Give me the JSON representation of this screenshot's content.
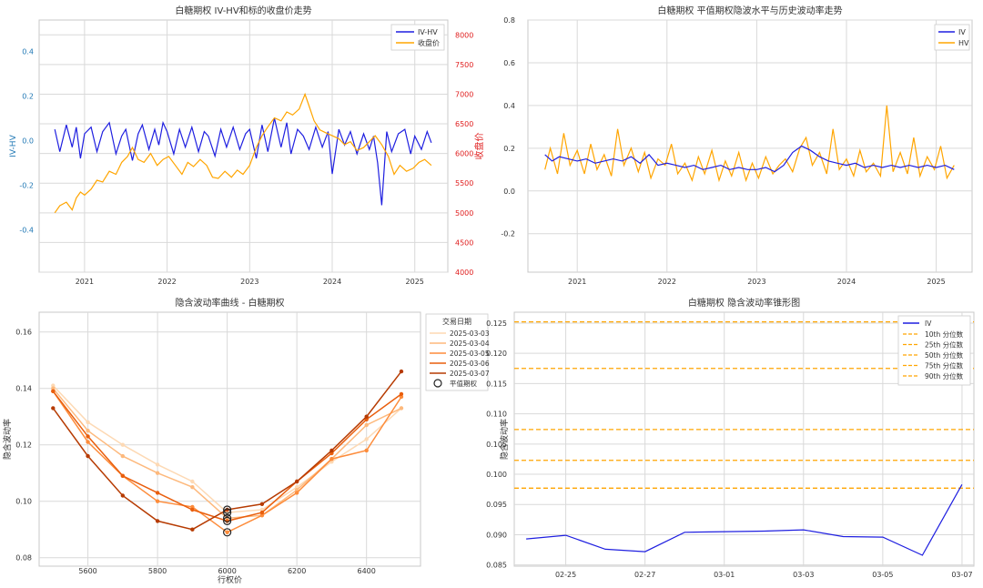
{
  "colors": {
    "blue": "#1f1fe0",
    "orange": "#ffa500",
    "red": "#e02020",
    "tick_blue": "#1f77b4"
  },
  "chart_data": [
    {
      "type": "line",
      "title": "白糖期权 IV-HV和标的收盘价走势",
      "ylabel": "IV-HV",
      "y2label": "收盘价",
      "xlim": [
        2020.45,
        2025.4
      ],
      "ylim": [
        -0.59,
        0.54
      ],
      "y2lim": [
        4000,
        8250
      ],
      "x_ticks": [
        2021,
        2022,
        2023,
        2024,
        2025
      ],
      "x_tick_labels": [
        "2021",
        "2022",
        "2023",
        "2024",
        "2025"
      ],
      "y_ticks": [
        -0.4,
        -0.2,
        0.0,
        0.2,
        0.4
      ],
      "y_tick_labels": [
        "-0.4",
        "-0.2",
        "0.0",
        "0.2",
        "0.4"
      ],
      "y2_ticks": [
        4000,
        4500,
        5000,
        5500,
        6000,
        6500,
        7000,
        7500,
        8000
      ],
      "y2_tick_labels": [
        "4000",
        "4500",
        "5000",
        "5500",
        "6000",
        "6500",
        "7000",
        "7500",
        "8000"
      ],
      "legend_position": "top-right",
      "series": [
        {
          "name": "IV-HV",
          "axis": "left",
          "color": "#1f1fe0",
          "x": [
            2020.64,
            2020.7,
            2020.78,
            2020.85,
            2020.9,
            2020.95,
            2021.0,
            2021.08,
            2021.15,
            2021.22,
            2021.3,
            2021.38,
            2021.45,
            2021.5,
            2021.58,
            2021.65,
            2021.7,
            2021.78,
            2021.85,
            2021.9,
            2021.95,
            2022.0,
            2022.08,
            2022.15,
            2022.22,
            2022.3,
            2022.38,
            2022.45,
            2022.5,
            2022.58,
            2022.65,
            2022.72,
            2022.8,
            2022.88,
            2022.95,
            2023.0,
            2023.08,
            2023.15,
            2023.22,
            2023.3,
            2023.38,
            2023.45,
            2023.5,
            2023.58,
            2023.65,
            2023.72,
            2023.8,
            2023.88,
            2023.95,
            2024.0,
            2024.08,
            2024.15,
            2024.22,
            2024.3,
            2024.38,
            2024.45,
            2024.5,
            2024.55,
            2024.6,
            2024.66,
            2024.72,
            2024.8,
            2024.88,
            2024.95,
            2025.0,
            2025.08,
            2025.15,
            2025.2
          ],
          "y": [
            0.05,
            -0.05,
            0.07,
            -0.03,
            0.06,
            -0.08,
            0.03,
            0.06,
            -0.05,
            0.04,
            0.08,
            -0.06,
            0.02,
            0.05,
            -0.09,
            0.03,
            0.07,
            -0.04,
            0.05,
            -0.02,
            0.08,
            0.04,
            -0.06,
            0.05,
            -0.03,
            0.06,
            -0.05,
            0.04,
            0.02,
            -0.07,
            0.05,
            -0.03,
            0.06,
            -0.04,
            0.03,
            0.05,
            -0.08,
            0.07,
            -0.05,
            0.1,
            -0.03,
            0.08,
            -0.06,
            0.05,
            0.02,
            -0.04,
            0.06,
            -0.03,
            0.04,
            -0.15,
            0.05,
            -0.02,
            0.04,
            -0.06,
            0.03,
            -0.04,
            0.02,
            -0.1,
            -0.29,
            0.04,
            -0.05,
            0.03,
            0.05,
            -0.06,
            0.02,
            -0.04,
            0.04,
            -0.01
          ]
        },
        {
          "name": "收盘价",
          "axis": "right",
          "color": "#ffa500",
          "x": [
            2020.64,
            2020.7,
            2020.78,
            2020.85,
            2020.9,
            2020.95,
            2021.0,
            2021.08,
            2021.15,
            2021.22,
            2021.3,
            2021.38,
            2021.45,
            2021.52,
            2021.58,
            2021.65,
            2021.72,
            2021.8,
            2021.88,
            2021.95,
            2022.02,
            2022.1,
            2022.18,
            2022.25,
            2022.32,
            2022.4,
            2022.48,
            2022.55,
            2022.62,
            2022.7,
            2022.78,
            2022.85,
            2022.92,
            2023.0,
            2023.08,
            2023.15,
            2023.22,
            2023.3,
            2023.38,
            2023.45,
            2023.52,
            2023.6,
            2023.67,
            2023.72,
            2023.78,
            2023.85,
            2023.92,
            2024.0,
            2024.08,
            2024.15,
            2024.22,
            2024.3,
            2024.38,
            2024.45,
            2024.52,
            2024.6,
            2024.68,
            2024.75,
            2024.82,
            2024.9,
            2024.98,
            2025.05,
            2025.12,
            2025.2
          ],
          "y": [
            5000,
            5120,
            5180,
            5050,
            5250,
            5350,
            5300,
            5400,
            5550,
            5520,
            5700,
            5650,
            5850,
            5950,
            6100,
            5900,
            5850,
            6000,
            5800,
            5900,
            5950,
            5800,
            5650,
            5850,
            5780,
            5900,
            5800,
            5600,
            5580,
            5700,
            5600,
            5720,
            5650,
            5800,
            6100,
            6300,
            6450,
            6600,
            6550,
            6700,
            6650,
            6750,
            7000,
            6800,
            6550,
            6400,
            6350,
            6300,
            6250,
            6150,
            6200,
            6050,
            6100,
            6200,
            6300,
            6150,
            5950,
            5650,
            5800,
            5700,
            5750,
            5850,
            5900,
            5800
          ]
        }
      ]
    },
    {
      "type": "line",
      "title": "白糖期权 平值期权隐波水平与历史波动率走势",
      "xlim": [
        2020.45,
        2025.4
      ],
      "ylim": [
        -0.38,
        0.8
      ],
      "x_ticks": [
        2021,
        2022,
        2023,
        2024,
        2025
      ],
      "x_tick_labels": [
        "2021",
        "2022",
        "2023",
        "2024",
        "2025"
      ],
      "y_ticks": [
        -0.2,
        0.0,
        0.2,
        0.4,
        0.6,
        0.8
      ],
      "y_tick_labels": [
        "-0.2",
        "0.0",
        "0.2",
        "0.4",
        "0.6",
        "0.8"
      ],
      "legend_position": "top-right",
      "series": [
        {
          "name": "IV",
          "color": "#1f1fe0",
          "x": [
            2020.64,
            2020.72,
            2020.8,
            2020.9,
            2021.0,
            2021.1,
            2021.2,
            2021.3,
            2021.4,
            2021.5,
            2021.6,
            2021.7,
            2021.8,
            2021.9,
            2022.0,
            2022.1,
            2022.2,
            2022.3,
            2022.4,
            2022.5,
            2022.6,
            2022.7,
            2022.8,
            2022.9,
            2023.0,
            2023.1,
            2023.2,
            2023.3,
            2023.4,
            2023.5,
            2023.6,
            2023.7,
            2023.8,
            2023.9,
            2024.0,
            2024.1,
            2024.2,
            2024.3,
            2024.4,
            2024.5,
            2024.6,
            2024.7,
            2024.8,
            2024.9,
            2025.0,
            2025.1,
            2025.2
          ],
          "y": [
            0.17,
            0.14,
            0.16,
            0.15,
            0.14,
            0.15,
            0.13,
            0.14,
            0.15,
            0.14,
            0.16,
            0.13,
            0.17,
            0.12,
            0.13,
            0.12,
            0.11,
            0.12,
            0.1,
            0.11,
            0.12,
            0.1,
            0.11,
            0.1,
            0.1,
            0.11,
            0.09,
            0.12,
            0.18,
            0.21,
            0.19,
            0.16,
            0.14,
            0.13,
            0.12,
            0.13,
            0.11,
            0.12,
            0.11,
            0.12,
            0.11,
            0.12,
            0.11,
            0.12,
            0.11,
            0.12,
            0.1
          ]
        },
        {
          "name": "HV",
          "color": "#ffa500",
          "x": [
            2020.64,
            2020.7,
            2020.78,
            2020.85,
            2020.92,
            2021.0,
            2021.08,
            2021.15,
            2021.22,
            2021.3,
            2021.38,
            2021.45,
            2021.52,
            2021.6,
            2021.68,
            2021.75,
            2021.82,
            2021.9,
            2021.98,
            2022.05,
            2022.12,
            2022.2,
            2022.28,
            2022.35,
            2022.42,
            2022.5,
            2022.58,
            2022.65,
            2022.72,
            2022.8,
            2022.88,
            2022.95,
            2023.02,
            2023.1,
            2023.18,
            2023.25,
            2023.32,
            2023.4,
            2023.48,
            2023.55,
            2023.62,
            2023.7,
            2023.78,
            2023.85,
            2023.92,
            2024.0,
            2024.08,
            2024.15,
            2024.22,
            2024.3,
            2024.38,
            2024.45,
            2024.52,
            2024.6,
            2024.68,
            2024.75,
            2024.82,
            2024.9,
            2024.98,
            2025.05,
            2025.12,
            2025.2
          ],
          "y": [
            0.1,
            0.2,
            0.08,
            0.27,
            0.12,
            0.19,
            0.08,
            0.22,
            0.1,
            0.17,
            0.07,
            0.29,
            0.12,
            0.2,
            0.09,
            0.18,
            0.06,
            0.15,
            0.12,
            0.22,
            0.08,
            0.13,
            0.05,
            0.16,
            0.08,
            0.19,
            0.05,
            0.14,
            0.07,
            0.18,
            0.05,
            0.13,
            0.06,
            0.16,
            0.08,
            0.12,
            0.15,
            0.09,
            0.2,
            0.25,
            0.12,
            0.18,
            0.08,
            0.29,
            0.1,
            0.15,
            0.07,
            0.19,
            0.09,
            0.13,
            0.07,
            0.4,
            0.09,
            0.18,
            0.08,
            0.25,
            0.07,
            0.16,
            0.1,
            0.21,
            0.06,
            0.12
          ]
        }
      ]
    },
    {
      "type": "line",
      "title": "隐含波动率曲线 - 白糖期权",
      "xlabel": "行权价",
      "ylabel": "隐含波动率",
      "xlim": [
        5460,
        6555
      ],
      "ylim": [
        0.077,
        0.167
      ],
      "x_ticks": [
        5600,
        5800,
        6000,
        6200,
        6400
      ],
      "x_tick_labels": [
        "5600",
        "5800",
        "6000",
        "6200",
        "6400"
      ],
      "y_ticks": [
        0.08,
        0.1,
        0.12,
        0.14,
        0.16
      ],
      "y_tick_labels": [
        "0.08",
        "0.10",
        "0.12",
        "0.14",
        "0.16"
      ],
      "legend_title": "交易日期",
      "legend_position": "top-right",
      "atm_label": "平值期权",
      "atm_strike": 6000,
      "strikes": [
        5500,
        5600,
        5700,
        5800,
        5900,
        6000,
        6100,
        6200,
        6300,
        6400,
        6500
      ],
      "series": [
        {
          "name": "2025-03-03",
          "color": "#fdd9b4",
          "values": [
            0.141,
            0.128,
            0.12,
            0.113,
            0.107,
            0.096,
            0.097,
            0.105,
            0.114,
            0.122,
            0.133
          ]
        },
        {
          "name": "2025-03-04",
          "color": "#fdb97d",
          "values": [
            0.14,
            0.125,
            0.116,
            0.11,
            0.105,
            0.094,
            0.095,
            0.104,
            0.115,
            0.127,
            0.133
          ]
        },
        {
          "name": "2025-03-05",
          "color": "#fd8c3b",
          "values": [
            0.139,
            0.121,
            0.109,
            0.1,
            0.098,
            0.089,
            0.095,
            0.103,
            0.115,
            0.118,
            0.137
          ]
        },
        {
          "name": "2025-03-06",
          "color": "#e95e0d",
          "values": [
            0.139,
            0.123,
            0.109,
            0.103,
            0.097,
            0.093,
            0.096,
            0.107,
            0.117,
            0.129,
            0.138
          ]
        },
        {
          "name": "2025-03-07",
          "color": "#b63b02",
          "values": [
            0.133,
            0.116,
            0.102,
            0.093,
            0.09,
            0.097,
            0.099,
            0.107,
            0.118,
            0.13,
            0.146
          ]
        }
      ]
    },
    {
      "type": "line",
      "title": "白糖期权 隐含波动率锥形图",
      "ylabel": "隐含波动率",
      "xlim": [
        -1.3,
        10.3
      ],
      "ylim": [
        0.0848,
        0.1268
      ],
      "x_tick_labels": [
        "02-25",
        "02-27",
        "03-01",
        "03-03",
        "03-05",
        "03-07"
      ],
      "x_tick_positions": [
        0,
        2,
        4,
        6,
        8,
        10
      ],
      "y_ticks": [
        0.085,
        0.09,
        0.095,
        0.1,
        0.105,
        0.11,
        0.115,
        0.12,
        0.125
      ],
      "y_tick_labels": [
        "0.085",
        "0.090",
        "0.095",
        "0.100",
        "0.105",
        "0.110",
        "0.115",
        "0.120",
        "0.125"
      ],
      "legend_position": "top-right",
      "series": [
        {
          "name": "IV",
          "color": "#1f1fe0",
          "x": [
            -1,
            0,
            1,
            2,
            3,
            5,
            6,
            7,
            8,
            9,
            10
          ],
          "y": [
            0.0893,
            0.0899,
            0.0876,
            0.0872,
            0.0904,
            0.0906,
            0.0908,
            0.0897,
            0.0896,
            0.0866,
            0.0983
          ]
        }
      ],
      "percentiles": [
        {
          "name": "10th 分位数",
          "value": 0.0977
        },
        {
          "name": "25th 分位数",
          "value": 0.1023
        },
        {
          "name": "50th 分位数",
          "value": 0.1074
        },
        {
          "name": "75th 分位数",
          "value": 0.1175
        },
        {
          "name": "90th 分位数",
          "value": 0.1252
        }
      ]
    }
  ]
}
